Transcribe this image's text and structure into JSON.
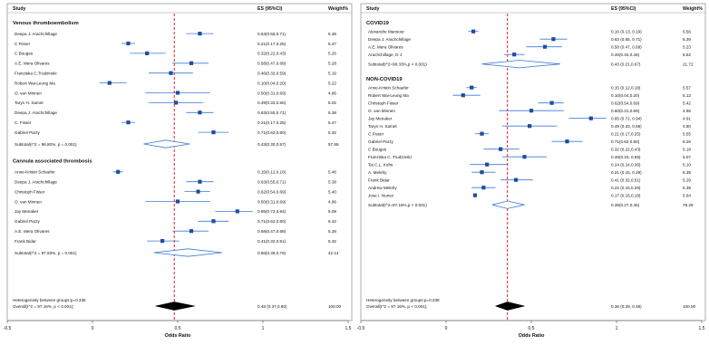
{
  "colors": {
    "accent": "#1f4e9c",
    "ci_line": "#3a7bd5",
    "null_line": "#e02020",
    "overall": "#000000"
  },
  "chart_data": [
    {
      "type": "forest",
      "headers": {
        "study": "Study",
        "es": "ES (95%CI)",
        "weight": "Weight%"
      },
      "xlabel": "Odds Ratio",
      "xlim": [
        -0.5,
        1.5
      ],
      "xticks": [
        "-0.5",
        "0",
        "0.5",
        "1",
        "1.5"
      ],
      "reference_line": 0.48,
      "groups": [
        {
          "name": "Venous thromboembolism",
          "rows": [
            {
              "study": "Deepa J. Arachchillage",
              "es": 0.63,
              "lo": 0.55,
              "hi": 0.71,
              "es_text": "0.63(0.55,0.71)",
              "weight": "5.38"
            },
            {
              "study": "C Fisser",
              "es": 0.21,
              "lo": 0.17,
              "hi": 0.25,
              "es_text": "0.21(0.17,0.25)",
              "weight": "5.47"
            },
            {
              "study": "C Bouges",
              "es": 0.32,
              "lo": 0.22,
              "hi": 0.43,
              "es_text": "0.32(0.22,0.43)",
              "weight": "5.26"
            },
            {
              "study": "A.E. Mera Olivares",
              "es": 0.58,
              "lo": 0.47,
              "hi": 0.68,
              "es_text": "0.58(0.47,0.68)",
              "weight": "5.28"
            },
            {
              "study": "Franziska C.Trudzinski",
              "es": 0.46,
              "lo": 0.33,
              "hi": 0.59,
              "es_text": "0.46(0.33,0.59)",
              "weight": "5.19"
            },
            {
              "study": "Robert Wai-Leung Ma",
              "es": 0.1,
              "lo": 0.04,
              "hi": 0.2,
              "es_text": "0.10(0.04,0.20)",
              "weight": "5.22"
            },
            {
              "study": "O. van Minnen",
              "es": 0.5,
              "lo": 0.31,
              "hi": 0.69,
              "es_text": "0.50(0.31,0.69)",
              "weight": "4.86"
            },
            {
              "study": "Taryn H. Samet",
              "es": 0.49,
              "lo": 0.33,
              "hi": 0.65,
              "es_text": "0.49(0.33,0.65)",
              "weight": "5.02"
            },
            {
              "study": "Deepa J. Arachchillage",
              "es": 0.63,
              "lo": 0.55,
              "hi": 0.71,
              "es_text": "0.63(0.55,0.71)",
              "weight": "5.38"
            },
            {
              "study": "C. Fisser",
              "es": 0.21,
              "lo": 0.17,
              "hi": 0.25,
              "es_text": "0.21(0.17,0.25)",
              "weight": "5.47"
            },
            {
              "study": "Gabriel Parzy",
              "es": 0.71,
              "lo": 0.62,
              "hi": 0.8,
              "es_text": "0.71(0.62,0.80)",
              "weight": "5.32"
            }
          ],
          "subtotal": {
            "label": "Subtotal(I^2 = 96.80%, p = 0.001)",
            "es": 0.43,
            "lo": 0.3,
            "hi": 0.57,
            "es_text": "0.43(0.30,0.57)",
            "weight": "57.86"
          }
        },
        {
          "name": "Cannula associated thrombosis",
          "rows": [
            {
              "study": "Anne-Kristin Schaefer",
              "es": 0.15,
              "lo": 0.12,
              "hi": 0.18,
              "es_text": "0.15(0.12,0.18)",
              "weight": "5.46"
            },
            {
              "study": "Deepa J. Arachchillage",
              "es": 0.63,
              "lo": 0.55,
              "hi": 0.71,
              "es_text": "0.63(0.55,0.71)",
              "weight": "5.38"
            },
            {
              "study": "Christoph Fisser",
              "es": 0.62,
              "lo": 0.54,
              "hi": 0.69,
              "es_text": "0.62(0.54,0.69)",
              "weight": "5.40"
            },
            {
              "study": "O. van Minnen",
              "es": 0.5,
              "lo": 0.31,
              "hi": 0.69,
              "es_text": "0.50(0.31,0.69)",
              "weight": "4.86"
            },
            {
              "study": "Jay Menaker",
              "es": 0.85,
              "lo": 0.72,
              "hi": 0.94,
              "es_text": "0.85(0.72,0.94)",
              "weight": "5.09"
            },
            {
              "study": "Gabriel Parzy",
              "es": 0.71,
              "lo": 0.62,
              "hi": 0.8,
              "es_text": "0.71(0.62,0.80)",
              "weight": "5.32"
            },
            {
              "study": "A.E. Mera Olivares",
              "es": 0.58,
              "lo": 0.47,
              "hi": 0.68,
              "es_text": "0.58(0.47,0.68)",
              "weight": "5.28"
            },
            {
              "study": "Frank Bidar",
              "es": 0.41,
              "lo": 0.32,
              "hi": 0.51,
              "es_text": "0.41(0.32,0.51)",
              "weight": "5.32"
            }
          ],
          "subtotal": {
            "label": "Subtotal(I^2 = 97.93%, p = 0.001)",
            "es": 0.56,
            "lo": 0.36,
            "hi": 0.76,
            "es_text": "0.56(0.36,0.76)",
            "weight": "42.14"
          }
        }
      ],
      "heterogeneity": "Heterogeneity between groups:p=0.336",
      "overall": {
        "label": "Overall(I^2 = 97.16%, p < 0.001);",
        "es": 0.48,
        "lo": 0.37,
        "hi": 0.6,
        "es_text": "0.48 (0.37,0.60)",
        "weight": "100.00"
      }
    },
    {
      "type": "forest",
      "headers": {
        "study": "Study",
        "es": "ES (95%CI)",
        "weight": "Weight%"
      },
      "xlabel": "Odds Ratio",
      "xlim": [
        -0.5,
        1.5
      ],
      "xticks": [
        "-0.5",
        "0",
        "0.5",
        "1",
        "1.5"
      ],
      "reference_line": 0.36,
      "groups": [
        {
          "name": "COVID19",
          "rows": [
            {
              "study": "Alexandre Mansour",
              "es": 0.16,
              "lo": 0.13,
              "hi": 0.19,
              "es_text": "0.16 (0.13, 0.19)",
              "weight": "5.56"
            },
            {
              "study": "Deepa J. Arachchillage",
              "es": 0.63,
              "lo": 0.55,
              "hi": 0.71,
              "es_text": "0.63 (0.55, 0.71)",
              "weight": "5.39"
            },
            {
              "study": "A.E. Mera Olivares",
              "es": 0.58,
              "lo": 0.47,
              "hi": 0.68,
              "es_text": "0.58 (0.47, 0.68)",
              "weight": "5.23"
            },
            {
              "study": "Arachchillage, D J",
              "es": 0.4,
              "lo": 0.34,
              "hi": 0.46,
              "es_text": "0.40(0.34,0.46)",
              "weight": "5.52"
            }
          ],
          "subtotal": {
            "label": "Subtotal(I^2=98.33%,p < 0.001)",
            "es": 0.43,
            "lo": 0.21,
            "hi": 0.67,
            "es_text": "0.43 (0.21,0.67)",
            "weight": "21.72"
          }
        },
        {
          "name": "NON-COVID19",
          "rows": [
            {
              "study": "Anne-Kristin Schaefer",
              "es": 0.15,
              "lo": 0.12,
              "hi": 0.18,
              "es_text": "0.15 (0.12,0.18)",
              "weight": "5.57"
            },
            {
              "study": "Robert Wai-Leung Ma",
              "es": 0.1,
              "lo": 0.04,
              "hi": 0.2,
              "es_text": "0.10(0.04,0.20)",
              "weight": "5.12"
            },
            {
              "study": "Christoph Fisser",
              "es": 0.62,
              "lo": 0.54,
              "hi": 0.69,
              "es_text": "0.62(0.54,0.69)",
              "weight": "5.42"
            },
            {
              "study": "O. van Minnen",
              "es": 0.5,
              "lo": 0.31,
              "hi": 0.69,
              "es_text": "0.50(0.31,0.69)",
              "weight": "4.56"
            },
            {
              "study": "Jay Menaker",
              "es": 0.85,
              "lo": 0.72,
              "hi": 0.94,
              "es_text": "0.85 (0.72, 0.94)",
              "weight": "4.91"
            },
            {
              "study": "Taryn H. Samet",
              "es": 0.49,
              "lo": 0.33,
              "hi": 0.65,
              "es_text": "0.49 (0.33, 0.65)",
              "weight": "4.80"
            },
            {
              "study": "C.Fisser",
              "es": 0.21,
              "lo": 0.17,
              "hi": 0.25,
              "es_text": "0.21 (0.17,0.25)",
              "weight": "5.55"
            },
            {
              "study": "Gabriel Parzy",
              "es": 0.71,
              "lo": 0.62,
              "hi": 0.8,
              "es_text": "0.71(0.62,0.80)",
              "weight": "5.28"
            },
            {
              "study": "C Bouges",
              "es": 0.32,
              "lo": 0.22,
              "hi": 0.43,
              "es_text": "0.32 (0.22,0.43)",
              "weight": "5.18"
            },
            {
              "study": "Franziska C. Trudzinski",
              "es": 0.46,
              "lo": 0.33,
              "hi": 0.59,
              "es_text": "0.46(0.33, 0.59)",
              "weight": "5.07"
            },
            {
              "study": "Tai C.L. Kohs",
              "es": 0.24,
              "lo": 0.14,
              "hi": 0.36,
              "es_text": "0.24 (0.14,0.36)",
              "weight": "5.10"
            },
            {
              "study": "A. Melehy",
              "es": 0.21,
              "lo": 0.15,
              "hi": 0.29,
              "es_text": "0.21 (0.15, 0.29)",
              "weight": "5.39"
            },
            {
              "study": "Frank Bidar",
              "es": 0.41,
              "lo": 0.32,
              "hi": 0.51,
              "es_text": "0.41 (0.32,0.51)",
              "weight": "5.29"
            },
            {
              "study": "Andrew Melehy",
              "es": 0.22,
              "lo": 0.15,
              "hi": 0.29,
              "es_text": "0.22 (0.15,0.29)",
              "weight": "5.39"
            },
            {
              "study": "Jose I. Nunez",
              "es": 0.17,
              "lo": 0.16,
              "hi": 0.18,
              "es_text": "0.17 (0.16,0.18)",
              "weight": "5.64"
            }
          ],
          "subtotal": {
            "label": "Subtotal(I^2=97.16%,p < 0.001)",
            "es": 0.36,
            "lo": 0.27,
            "hi": 0.46,
            "es_text": "0.36(0.27,0.46)",
            "weight": "78.28"
          }
        }
      ],
      "heterogeneity": "Heterogeneity between groups:p=0.338",
      "overall": {
        "label": "Overall(I^2 = 97.16%, p < 0.001);",
        "es": 0.36,
        "lo": 0.29,
        "hi": 0.46,
        "es_text": "0.36 (0.29, 0.46)",
        "weight": "100.00"
      }
    }
  ]
}
